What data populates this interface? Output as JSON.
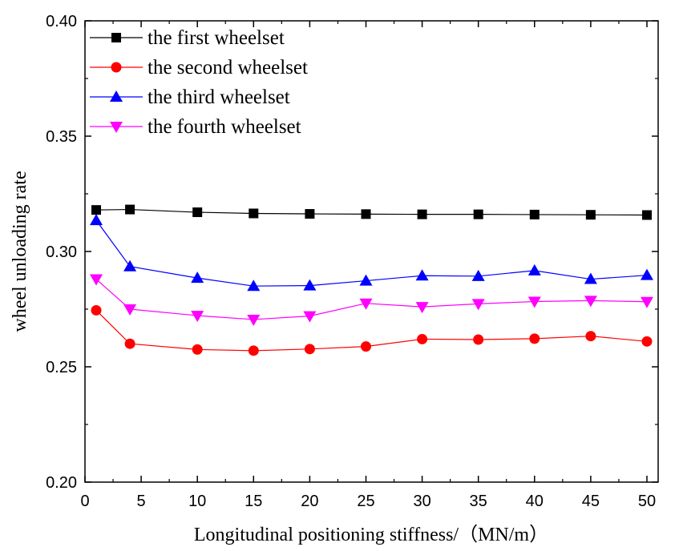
{
  "chart_data": {
    "type": "line",
    "xlabel": "Longitudinal positioning stiffness/（MN/m）",
    "ylabel": "wheel unloading rate",
    "xlim": [
      0,
      51
    ],
    "ylim": [
      0.2,
      0.4
    ],
    "xticks": [
      0,
      5,
      10,
      15,
      20,
      25,
      30,
      35,
      40,
      45,
      50
    ],
    "yticks": [
      0.2,
      0.25,
      0.3,
      0.35,
      0.4
    ],
    "ytick_labels": [
      "0.20",
      "0.25",
      "0.30",
      "0.35",
      "0.40"
    ],
    "grid": false,
    "legend_position": "top-left",
    "x": [
      1,
      4,
      10,
      15,
      20,
      25,
      30,
      35,
      40,
      45,
      50
    ],
    "series": [
      {
        "name": "the first wheelset",
        "color": "#000000",
        "marker": "square",
        "values": [
          0.318,
          0.3182,
          0.317,
          0.3165,
          0.3163,
          0.3162,
          0.3161,
          0.3161,
          0.316,
          0.3159,
          0.3158
        ]
      },
      {
        "name": "the second wheelset",
        "color": "#ff0000",
        "marker": "circle",
        "values": [
          0.2745,
          0.26,
          0.2575,
          0.257,
          0.2577,
          0.2588,
          0.262,
          0.2618,
          0.2622,
          0.2633,
          0.261
        ]
      },
      {
        "name": "the third wheelset",
        "color": "#0000ff",
        "marker": "triangle-up",
        "values": [
          0.3135,
          0.2935,
          0.2885,
          0.285,
          0.2852,
          0.2873,
          0.2895,
          0.2893,
          0.2917,
          0.288,
          0.2897
        ]
      },
      {
        "name": "the fourth wheelset",
        "color": "#ff00ff",
        "marker": "triangle-down",
        "values": [
          0.288,
          0.275,
          0.2722,
          0.2705,
          0.272,
          0.2775,
          0.276,
          0.2773,
          0.2783,
          0.2787,
          0.2782
        ]
      }
    ]
  }
}
